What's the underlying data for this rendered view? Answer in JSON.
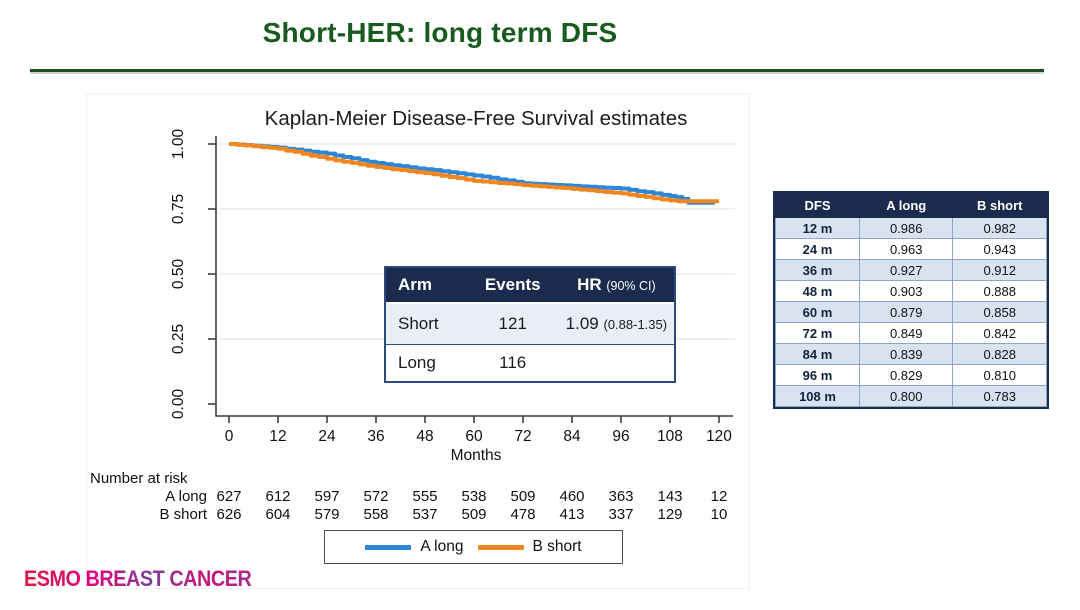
{
  "slide": {
    "title": "Short-HER: long term DFS",
    "footer_logo": "ESMO BREAST CANCER"
  },
  "colors": {
    "title_green": "#185a1f",
    "rule_green": "#1d4d23",
    "navy_header": "#1b2b4d",
    "table_light_row": "#d9e2f1",
    "inset_light_row": "#e9edf6",
    "grid_line": "#dfe9f2",
    "axis": "#3c3c3c",
    "series_blue": "#2e86d8",
    "series_orange": "#f0861f",
    "logo_pink": "#e5007e"
  },
  "chart_data": {
    "type": "line",
    "subtype": "kaplan-meier-step",
    "title": "Kaplan-Meier Disease-Free Survival estimates",
    "xlabel": "Months",
    "ylabel": "",
    "xlim": [
      0,
      120
    ],
    "ylim": [
      0.0,
      1.0
    ],
    "grid": true,
    "legend_position": "bottom",
    "x_ticks": [
      0,
      12,
      24,
      36,
      48,
      60,
      72,
      84,
      96,
      108,
      120
    ],
    "y_ticks": [
      {
        "label": "1.00",
        "value": 1.0
      },
      {
        "label": "0.75",
        "value": 0.75
      },
      {
        "label": "0.50",
        "value": 0.5
      },
      {
        "label": "0.25",
        "value": 0.25
      },
      {
        "label": "0.00",
        "value": 0.0
      }
    ],
    "series": [
      {
        "name": "A long",
        "color": "#2e86d8",
        "points": [
          [
            0,
            1.0
          ],
          [
            12,
            0.986
          ],
          [
            24,
            0.963
          ],
          [
            36,
            0.927
          ],
          [
            48,
            0.903
          ],
          [
            60,
            0.879
          ],
          [
            72,
            0.849
          ],
          [
            84,
            0.839
          ],
          [
            96,
            0.829
          ],
          [
            102,
            0.815
          ],
          [
            108,
            0.8
          ],
          [
            111,
            0.789
          ],
          [
            112.5,
            0.774
          ],
          [
            119,
            0.774
          ]
        ]
      },
      {
        "name": "B short",
        "color": "#f0861f",
        "points": [
          [
            0,
            1.0
          ],
          [
            12,
            0.982
          ],
          [
            24,
            0.943
          ],
          [
            36,
            0.912
          ],
          [
            48,
            0.888
          ],
          [
            60,
            0.858
          ],
          [
            72,
            0.842
          ],
          [
            84,
            0.828
          ],
          [
            96,
            0.81
          ],
          [
            108,
            0.783
          ],
          [
            110,
            0.78
          ],
          [
            120,
            0.78
          ]
        ]
      }
    ],
    "number_at_risk": {
      "heading": "Number at risk",
      "rows": [
        {
          "label": "A long",
          "counts": [
            627,
            612,
            597,
            572,
            555,
            538,
            509,
            460,
            363,
            143,
            12
          ]
        },
        {
          "label": "B short",
          "counts": [
            626,
            604,
            579,
            558,
            537,
            509,
            478,
            413,
            337,
            129,
            10
          ]
        }
      ]
    }
  },
  "inset_table": {
    "headers": {
      "arm": "Arm",
      "events": "Events",
      "hr": "HR",
      "hr_note": "(90% CI)"
    },
    "rows": [
      {
        "arm": "Short",
        "events": "121",
        "hr": "1.09",
        "hr_ci": "(0.88-1.35)"
      },
      {
        "arm": "Long",
        "events": "116",
        "hr": "",
        "hr_ci": ""
      }
    ]
  },
  "dfs_table": {
    "headers": [
      "DFS",
      "A long",
      "B short"
    ],
    "rows": [
      [
        "12 m",
        "0.986",
        "0.982"
      ],
      [
        "24 m",
        "0.963",
        "0.943"
      ],
      [
        "36 m",
        "0.927",
        "0.912"
      ],
      [
        "48 m",
        "0.903",
        "0.888"
      ],
      [
        "60 m",
        "0.879",
        "0.858"
      ],
      [
        "72 m",
        "0.849",
        "0.842"
      ],
      [
        "84 m",
        "0.839",
        "0.828"
      ],
      [
        "96 m",
        "0.829",
        "0.810"
      ],
      [
        "108 m",
        "0.800",
        "0.783"
      ]
    ]
  },
  "legend": {
    "items": [
      {
        "label": "A long",
        "color": "#2e86d8"
      },
      {
        "label": "B short",
        "color": "#f0861f"
      }
    ]
  }
}
